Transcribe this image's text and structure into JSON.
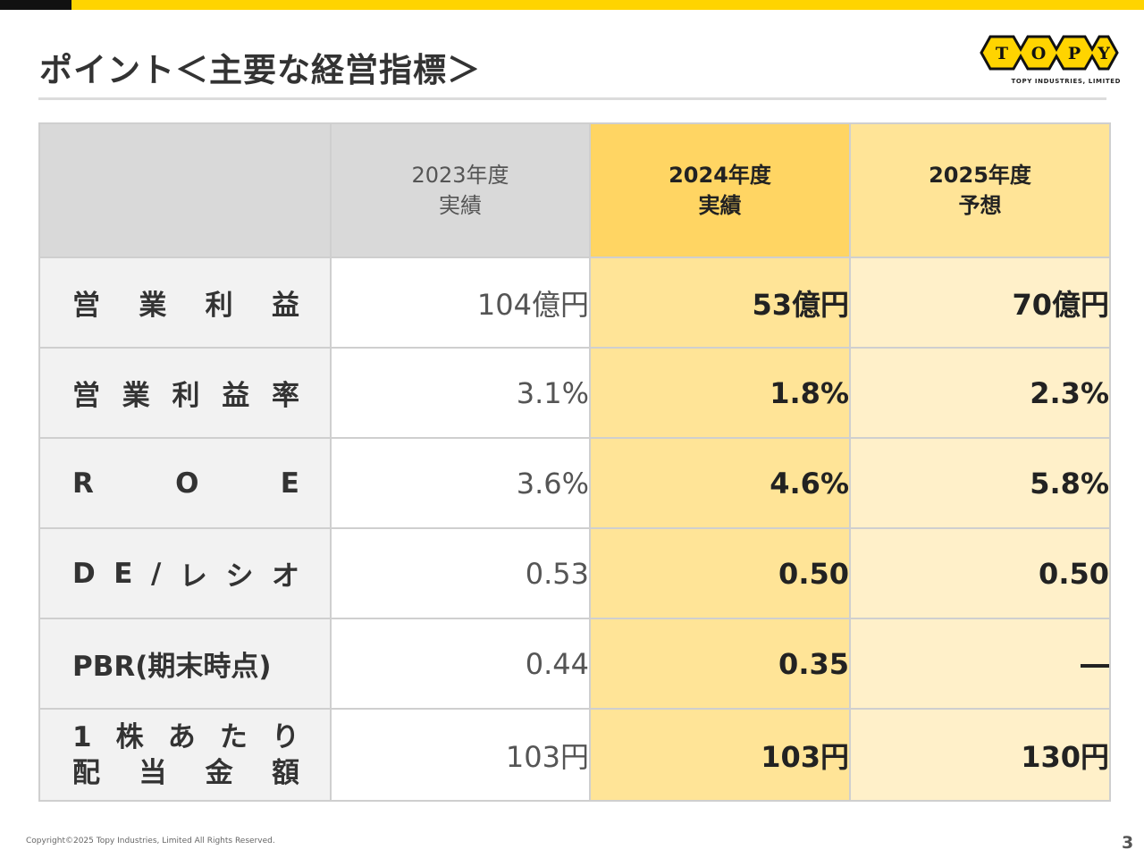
{
  "title": "ポイント＜主要な経営指標＞",
  "logo": {
    "letters": [
      "T",
      "O",
      "P",
      "Y"
    ],
    "company": "TOPY INDUSTRIES, LIMITED",
    "colors": {
      "fill": "#FFD400",
      "stroke": "#111111"
    }
  },
  "colors": {
    "accent_yellow": "#FFD400",
    "header_2024": "#FFD563",
    "col_2024": "#FFE497",
    "col_2025": "#FFF0C9",
    "header_gray": "#D9D9D9",
    "label_bg": "#F2F2F2"
  },
  "table": {
    "headers": [
      {
        "line1": "",
        "line2": ""
      },
      {
        "line1": "2023年度",
        "line2": "実績"
      },
      {
        "line1": "2024年度",
        "line2": "実績"
      },
      {
        "line1": "2025年度",
        "line2": "予想"
      }
    ],
    "rows": [
      {
        "label_chars": [
          "営",
          "業",
          "利",
          "益"
        ],
        "v2023": "104億円",
        "v2024": "53億円",
        "v2025": "70億円"
      },
      {
        "label_chars": [
          "営",
          "業",
          "利",
          "益",
          "率"
        ],
        "v2023": "3.1%",
        "v2024": "1.8%",
        "v2025": "2.3%"
      },
      {
        "label_chars": [
          "R",
          "O",
          "E"
        ],
        "v2023": "3.6%",
        "v2024": "4.6%",
        "v2025": "5.8%"
      },
      {
        "label_chars": [
          "D",
          "E",
          "/",
          "レ",
          "シ",
          "オ"
        ],
        "v2023": "0.53",
        "v2024": "0.50",
        "v2025": "0.50"
      },
      {
        "label": "PBR(期末時点)",
        "v2023": "0.44",
        "v2024": "0.35",
        "v2025": "―"
      },
      {
        "label_line1": [
          "1",
          "株",
          "あ",
          "た",
          "り"
        ],
        "label_line2": [
          "配",
          "当",
          "金",
          "額"
        ],
        "v2023": "103円",
        "v2024": "103円",
        "v2025": "130円"
      }
    ]
  },
  "footer": {
    "copyright": "Copyright©2025 Topy Industries, Limited All Rights Reserved.",
    "page_number": "3"
  }
}
